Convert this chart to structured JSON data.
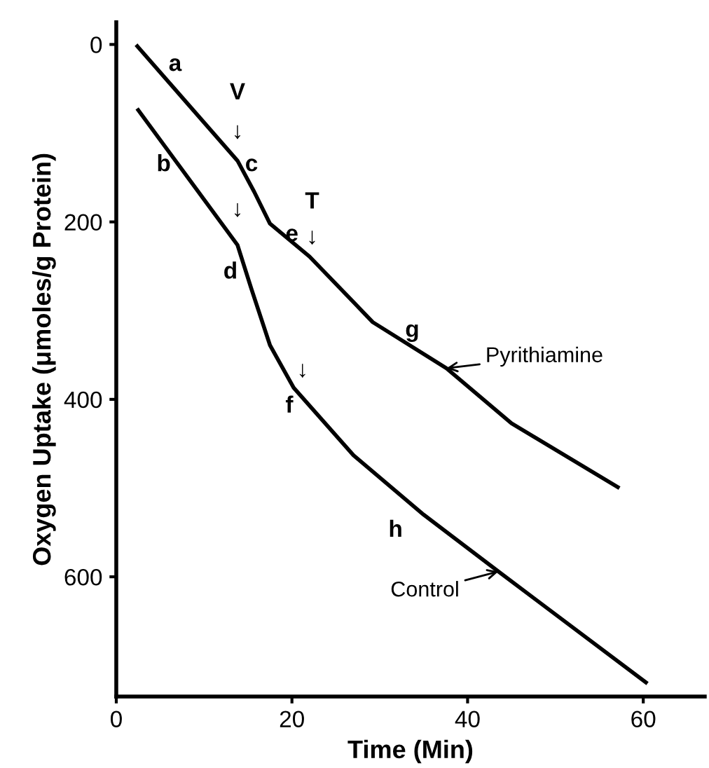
{
  "chart_data": {
    "type": "line",
    "xlabel": "Time (Min)",
    "ylabel": "Oxygen Uptake (μmoles/g Protein)",
    "xlim": [
      0,
      67
    ],
    "ylim": [
      735,
      -25
    ],
    "xticks": [
      0,
      20,
      40,
      60
    ],
    "yticks": [
      0,
      200,
      400,
      600
    ],
    "grid": false,
    "legend": "top right",
    "marker": "none",
    "line_style": "solid",
    "series": [
      {
        "name": "Pyrithiamine",
        "color": "#000000",
        "x": [
          2.4,
          13.8,
          15.7,
          17.5,
          22,
          29.2,
          37.6,
          45,
          57.1
        ],
        "values": [
          2,
          131,
          166,
          202,
          239,
          313,
          365,
          427,
          499
        ]
      },
      {
        "name": "Control",
        "color": "#000000",
        "x": [
          2.5,
          13.8,
          15.4,
          17.5,
          20.2,
          27,
          35,
          43.5,
          60.3
        ],
        "values": [
          74,
          226,
          276,
          339,
          387,
          463,
          530,
          594,
          719
        ]
      }
    ],
    "annotations": [
      "a",
      "b",
      "c",
      "d",
      "e",
      "f",
      "g",
      "h",
      "V",
      "↓",
      "↓",
      "T",
      "↓",
      "↓"
    ]
  }
}
